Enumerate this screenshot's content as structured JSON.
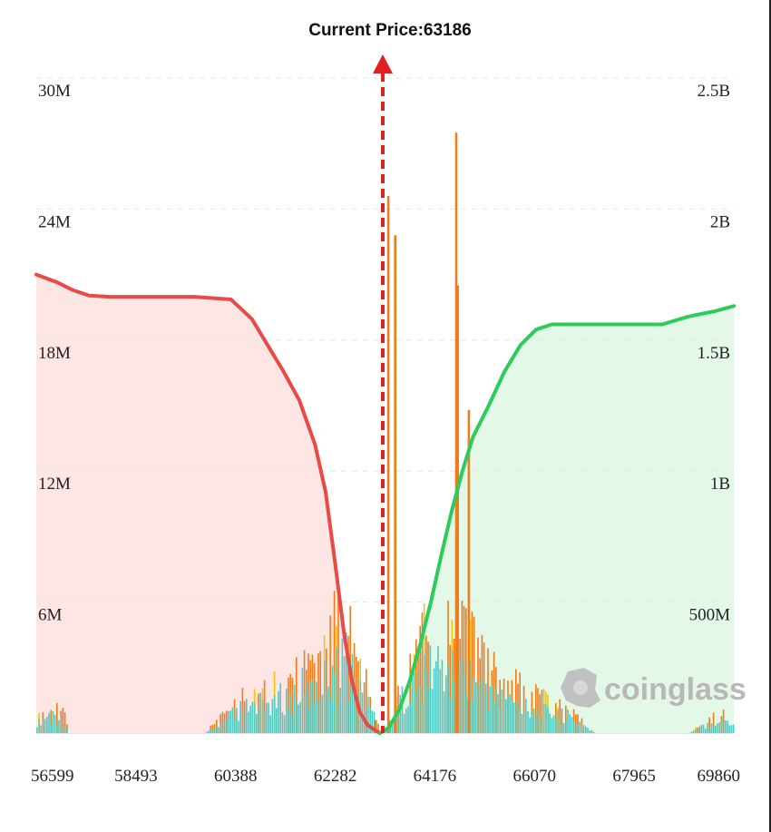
{
  "chart_data": {
    "type": "bar",
    "title": "Current Price:63186",
    "current_price": 63186,
    "xlim": [
      56599,
      69860
    ],
    "x_ticks": [
      "56599",
      "58493",
      "60388",
      "62282",
      "64176",
      "66070",
      "67965",
      "69860"
    ],
    "y_left": {
      "range": [
        0,
        30000000
      ],
      "ticks": [
        "30M",
        "24M",
        "18M",
        "12M",
        "6M"
      ]
    },
    "y_right": {
      "range": [
        0,
        2500000000
      ],
      "ticks": [
        "2.5B",
        "2B",
        "1.5B",
        "1B",
        "500M"
      ]
    },
    "grid": true,
    "colors": {
      "short_cumulative": "#e84a45",
      "short_fill": "#fde6e4",
      "long_cumulative": "#2dcb5c",
      "long_fill": "#e3f8e7",
      "bar_orange": "#f07c1c",
      "bar_teal": "#4fc9c4",
      "bar_yellow": "#f1c40f",
      "price_marker": "#e02020"
    },
    "cumulative_short_liquidation": {
      "axis": "right",
      "x": [
        56599,
        57000,
        57300,
        57600,
        58000,
        58500,
        59000,
        59600,
        60300,
        60700,
        61000,
        61300,
        61600,
        61900,
        62100,
        62280,
        62450,
        62600,
        62750,
        62900,
        63050,
        63130
      ],
      "y": [
        1750000000,
        1720000000,
        1690000000,
        1670000000,
        1665000000,
        1665000000,
        1665000000,
        1665000000,
        1655000000,
        1580000000,
        1480000000,
        1380000000,
        1270000000,
        1100000000,
        920000000,
        650000000,
        380000000,
        200000000,
        80000000,
        30000000,
        10000000,
        0
      ]
    },
    "cumulative_long_liquidation": {
      "axis": "right",
      "x": [
        63130,
        63300,
        63500,
        63700,
        63900,
        64100,
        64300,
        64500,
        64700,
        64900,
        65200,
        65500,
        65800,
        66100,
        66400,
        67000,
        67800,
        68500,
        69000,
        69500,
        69860
      ],
      "y": [
        0,
        20000000,
        90000000,
        200000000,
        340000000,
        500000000,
        680000000,
        850000000,
        1000000000,
        1130000000,
        1250000000,
        1380000000,
        1480000000,
        1540000000,
        1560000000,
        1560000000,
        1560000000,
        1560000000,
        1590000000,
        1610000000,
        1630000000
      ]
    },
    "spikes": {
      "axis": "left",
      "color_key": "bar_orange",
      "x": [
        63030,
        63270,
        63400,
        64560,
        64590,
        64800
      ],
      "y": [
        600000,
        24600000,
        22800000,
        27500000,
        20500000,
        14800000
      ]
    },
    "density_profile": {
      "axis": "left",
      "note_series": [
        "orange",
        "teal"
      ],
      "x": [
        56599,
        56800,
        57000,
        57100,
        57200,
        58000,
        59000,
        59800,
        60000,
        60500,
        61000,
        61500,
        61800,
        62000,
        62200,
        62400,
        62600,
        62800,
        63000,
        63130,
        63300,
        63500,
        63800,
        64000,
        64300,
        64500,
        64800,
        65000,
        65300,
        65600,
        66000,
        66300,
        66600,
        66900,
        67200,
        67500,
        68000,
        68500,
        69000,
        69300,
        69600,
        69860
      ],
      "y": [
        600000,
        900000,
        1000000,
        800000,
        0,
        0,
        0,
        0,
        400000,
        1200000,
        1500000,
        2000000,
        2500000,
        3000000,
        3800000,
        4000000,
        3200000,
        2000000,
        1000000,
        0,
        500000,
        1600000,
        3000000,
        3500000,
        3300000,
        3600000,
        3400000,
        2800000,
        2200000,
        1800000,
        1400000,
        1200000,
        900000,
        600000,
        0,
        0,
        0,
        0,
        0,
        400000,
        700000,
        500000
      ]
    }
  },
  "watermark": {
    "text": "coinglass",
    "icon": "coinglass-logo-icon"
  }
}
